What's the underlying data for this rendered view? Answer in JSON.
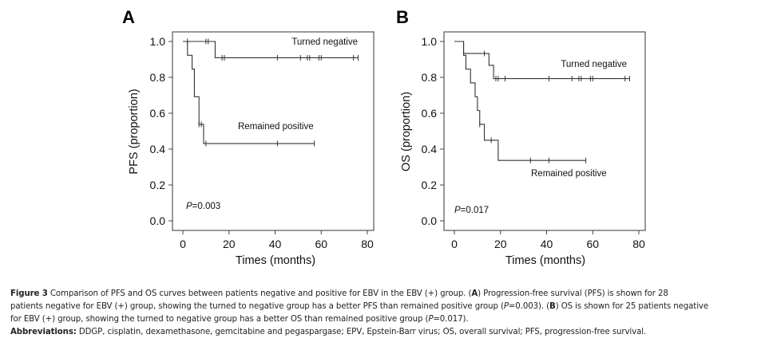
{
  "figure": {
    "panels": [
      "A",
      "B"
    ]
  },
  "chart_data": [
    {
      "type": "line",
      "subtype": "kaplan-meier",
      "panel": "A",
      "title": "",
      "xlabel": "Times (months)",
      "ylabel": "PFS (proportion)",
      "xlim": [
        0,
        80
      ],
      "ylim": [
        0,
        1.0
      ],
      "xticks": [
        "0",
        "20",
        "40",
        "60",
        "80"
      ],
      "yticks": [
        "0.0",
        "0.2",
        "0.4",
        "0.6",
        "0.8",
        "1.0"
      ],
      "grid": false,
      "annotation": {
        "p_prefix": "P",
        "p_value": "=0.003",
        "placement": "bottom-left"
      },
      "series": [
        {
          "name": "Turned negative",
          "label_placement": "top-right",
          "steps": [
            [
              0,
              1.0
            ],
            [
              14,
              0.909
            ],
            [
              76,
              0.909
            ]
          ],
          "censor_times": [
            2,
            10,
            11,
            17,
            18,
            41,
            51,
            54,
            55,
            59,
            60,
            74,
            76
          ]
        },
        {
          "name": "Remained positive",
          "label_placement": "middle",
          "steps": [
            [
              0,
              1.0
            ],
            [
              2,
              0.923
            ],
            [
              4,
              0.846
            ],
            [
              5,
              0.692
            ],
            [
              7,
              0.538
            ],
            [
              9,
              0.431
            ],
            [
              57,
              0.431
            ]
          ],
          "censor_times": [
            7,
            8,
            10,
            41,
            57
          ]
        }
      ]
    },
    {
      "type": "line",
      "subtype": "kaplan-meier",
      "panel": "B",
      "title": "",
      "xlabel": "Times (months)",
      "ylabel": "OS (proportion)",
      "xlim": [
        0,
        80
      ],
      "ylim": [
        0,
        1.0
      ],
      "xticks": [
        "0",
        "20",
        "40",
        "60",
        "80"
      ],
      "yticks": [
        "0.0",
        "0.2",
        "0.4",
        "0.6",
        "0.8",
        "1.0"
      ],
      "grid": false,
      "annotation": {
        "p_prefix": "P",
        "p_value": "=0.017",
        "placement": "bottom-left"
      },
      "series": [
        {
          "name": "Turned negative",
          "label_placement": "upper-right",
          "steps": [
            [
              0,
              1.0
            ],
            [
              4,
              0.933
            ],
            [
              15,
              0.867
            ],
            [
              17,
              0.793
            ],
            [
              76,
              0.793
            ]
          ],
          "censor_times": [
            13,
            18,
            19,
            22,
            41,
            51,
            54,
            55,
            59,
            60,
            74,
            76
          ]
        },
        {
          "name": "Remained positive",
          "label_placement": "below-curve",
          "steps": [
            [
              0,
              1.0
            ],
            [
              4,
              0.923
            ],
            [
              5,
              0.846
            ],
            [
              7,
              0.769
            ],
            [
              9,
              0.692
            ],
            [
              10,
              0.615
            ],
            [
              11,
              0.538
            ],
            [
              13,
              0.449
            ],
            [
              19,
              0.337
            ],
            [
              57,
              0.337
            ]
          ],
          "censor_times": [
            11,
            16,
            33,
            41,
            57
          ]
        }
      ]
    }
  ],
  "caption": {
    "fig_label": "Figure 3",
    "line1_text": " Comparison of PFS and OS curves between patients negative and positive for EBV in the EBV (+) group. (",
    "line1_A": "A",
    "line1_rest": ") Progression-free survival (PFS) is shown for 28",
    "line2_start": "patients negative for EBV (+) group, showing the turned to negative group has a better PFS than remained positive group (",
    "line2_p": "P",
    "line2_mid": "=0.003). (",
    "line2_B": "B",
    "line2_rest": ") OS is shown for 25 patients negative",
    "line3_start": "for EBV (+) group, showing the turned to negative group has a better OS than remained positive group (",
    "line3_p": "P",
    "line3_rest": "=0.017).",
    "abbr_label": "Abbreviations:",
    "abbr_text": " DDGP, cisplatin, dexamethasone, gemcitabine and pegaspargase; EPV, Epstein-Barr virus; OS, overall survival; PFS, progression-free survival."
  }
}
